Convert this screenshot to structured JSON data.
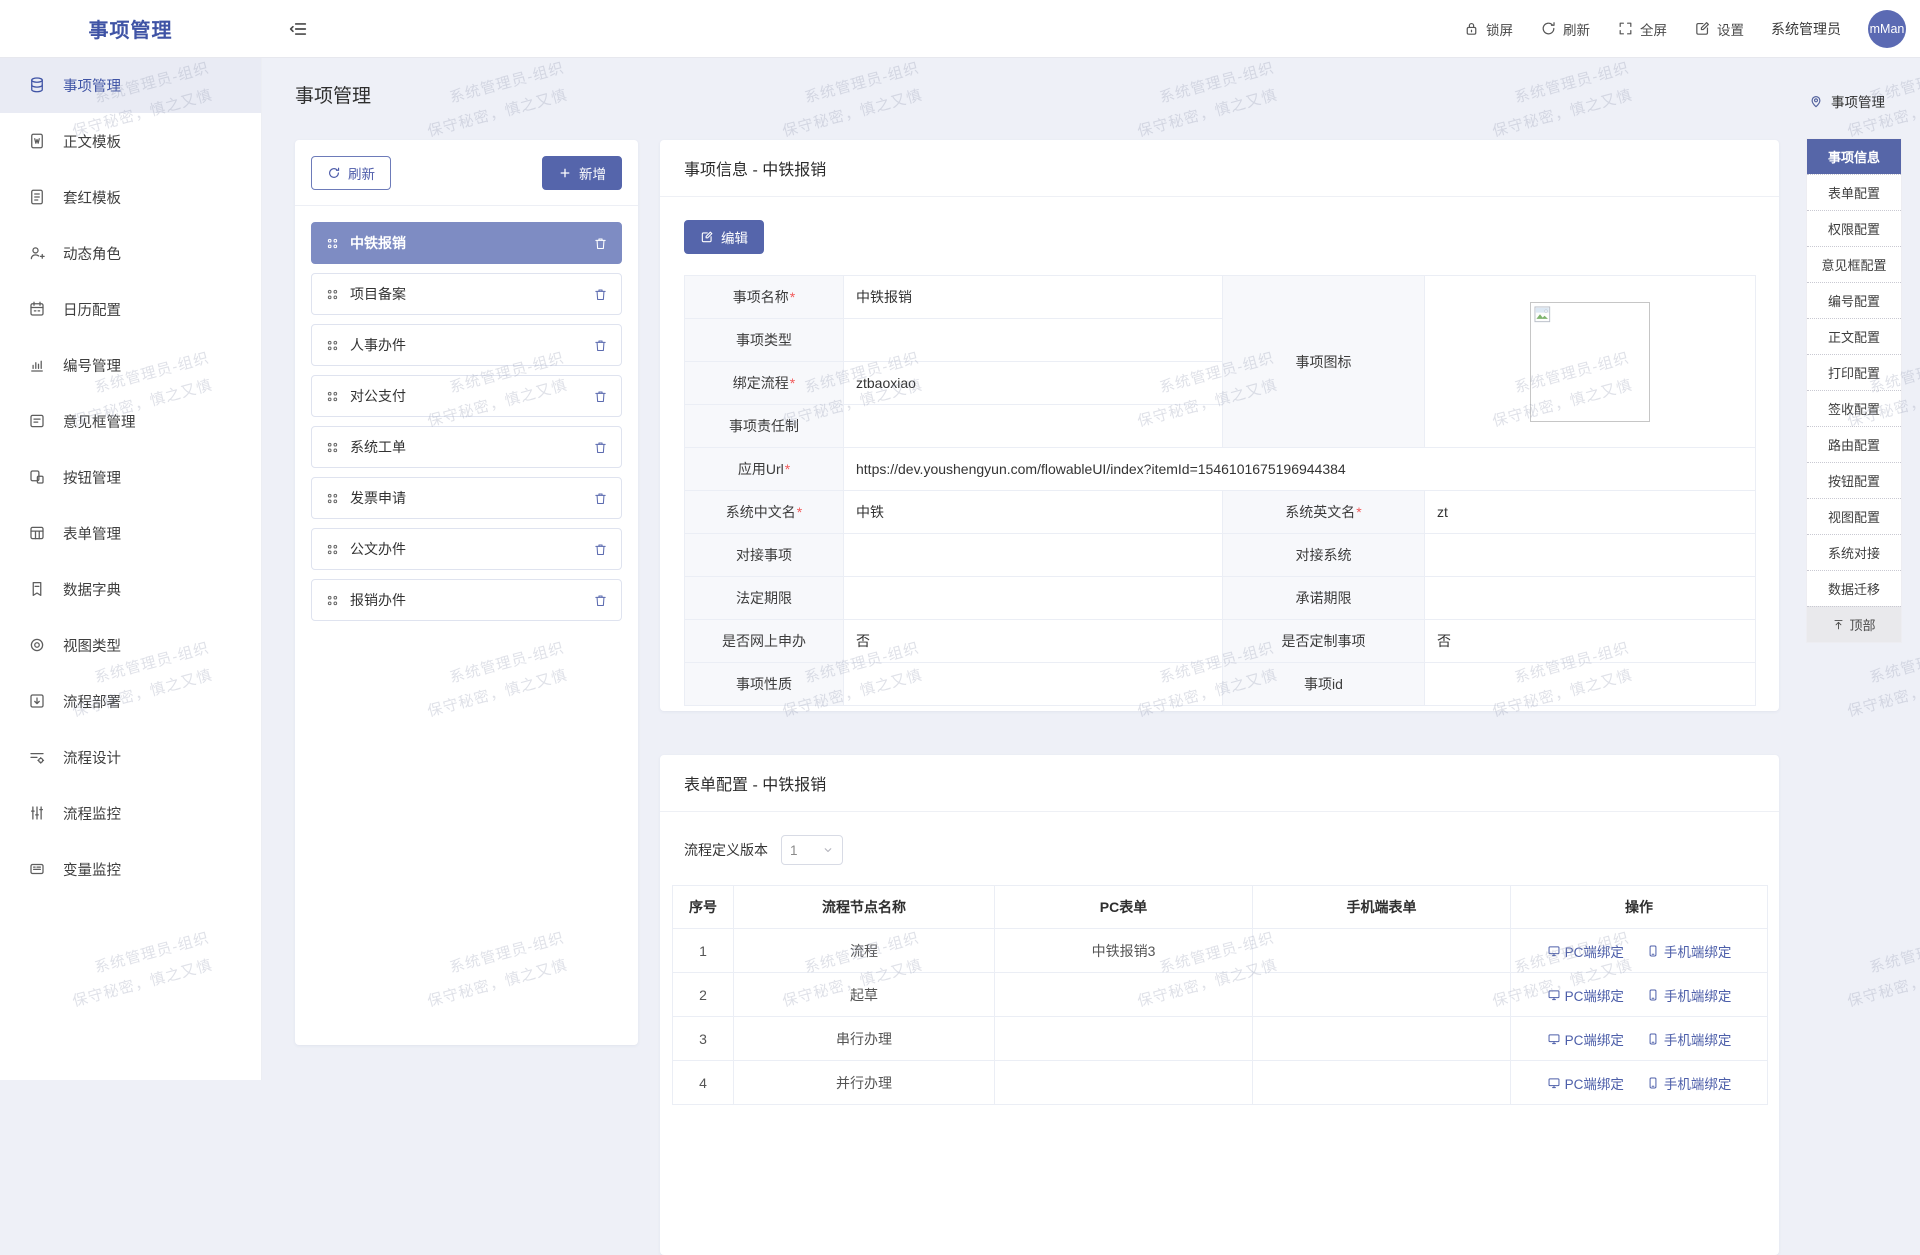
{
  "colors": {
    "accent": "#5565ab",
    "accent_selected": "#7e8cc3",
    "anchor_active": "#5666a8",
    "link": "#4c5ea9",
    "page_bg": "#eef0f7"
  },
  "brand": {
    "title": "事项管理"
  },
  "header": {
    "actions": [
      {
        "icon": "lock-icon",
        "label": "锁屏"
      },
      {
        "icon": "refresh-icon",
        "label": "刷新"
      },
      {
        "icon": "fullscreen-icon",
        "label": "全屏"
      },
      {
        "icon": "edit-square-icon",
        "label": "设置"
      }
    ],
    "username": "系统管理员",
    "avatar_text": "mMan"
  },
  "sidebar": {
    "items": [
      {
        "icon": "database-icon",
        "label": "事项管理",
        "active": true
      },
      {
        "icon": "doc-text-icon",
        "label": "正文模板",
        "active": false
      },
      {
        "icon": "doc-red-icon",
        "label": "套红模板",
        "active": false
      },
      {
        "icon": "user-plus-icon",
        "label": "动态角色",
        "active": false
      },
      {
        "icon": "calendar-icon",
        "label": "日历配置",
        "active": false
      },
      {
        "icon": "bar-chart-icon",
        "label": "编号管理",
        "active": false
      },
      {
        "icon": "comment-box-icon",
        "label": "意见框管理",
        "active": false
      },
      {
        "icon": "button-icon",
        "label": "按钮管理",
        "active": false
      },
      {
        "icon": "form-table-icon",
        "label": "表单管理",
        "active": false
      },
      {
        "icon": "dictionary-icon",
        "label": "数据字典",
        "active": false
      },
      {
        "icon": "view-type-icon",
        "label": "视图类型",
        "active": false
      },
      {
        "icon": "deploy-icon",
        "label": "流程部署",
        "active": false
      },
      {
        "icon": "process-design-icon",
        "label": "流程设计",
        "active": false
      },
      {
        "icon": "process-monitor-icon",
        "label": "流程监控",
        "active": false
      },
      {
        "icon": "variable-monitor-icon",
        "label": "变量监控",
        "active": false
      }
    ]
  },
  "page": {
    "title": "事项管理"
  },
  "list_panel": {
    "refresh_label": "刷新",
    "add_label": "新增",
    "items": [
      {
        "label": "中铁报销",
        "active": true
      },
      {
        "label": "项目备案",
        "active": false
      },
      {
        "label": "人事办件",
        "active": false
      },
      {
        "label": "对公支付",
        "active": false
      },
      {
        "label": "系统工单",
        "active": false
      },
      {
        "label": "发票申请",
        "active": false
      },
      {
        "label": "公文办件",
        "active": false
      },
      {
        "label": "报销办件",
        "active": false
      }
    ]
  },
  "info_card": {
    "title": "事项信息 - 中铁报销",
    "edit_label": "编辑",
    "rows": [
      [
        {
          "t": "label",
          "text": "事项名称",
          "req": true
        },
        {
          "t": "value",
          "text": "中铁报销"
        },
        {
          "t": "label",
          "text": "事项图标",
          "rowspan": 4
        },
        {
          "t": "image",
          "rowspan": 4
        }
      ],
      [
        {
          "t": "label",
          "text": "事项类型"
        },
        {
          "t": "value",
          "text": ""
        }
      ],
      [
        {
          "t": "label",
          "text": "绑定流程",
          "req": true
        },
        {
          "t": "value",
          "text": "ztbaoxiao"
        }
      ],
      [
        {
          "t": "label",
          "text": "事项责任制"
        },
        {
          "t": "value",
          "text": ""
        }
      ],
      [
        {
          "t": "label",
          "text": "应用Url",
          "req": true
        },
        {
          "t": "value",
          "text": "https://dev.youshengyun.com/flowableUI/index?itemId=1546101675196944384",
          "colspan": 3
        }
      ],
      [
        {
          "t": "label",
          "text": "系统中文名",
          "req": true
        },
        {
          "t": "value",
          "text": "中铁"
        },
        {
          "t": "label",
          "text": "系统英文名",
          "req": true
        },
        {
          "t": "value",
          "text": "zt"
        }
      ],
      [
        {
          "t": "label",
          "text": "对接事项"
        },
        {
          "t": "value",
          "text": ""
        },
        {
          "t": "label",
          "text": "对接系统"
        },
        {
          "t": "value",
          "text": ""
        }
      ],
      [
        {
          "t": "label",
          "text": "法定期限"
        },
        {
          "t": "value",
          "text": ""
        },
        {
          "t": "label",
          "text": "承诺期限"
        },
        {
          "t": "value",
          "text": ""
        }
      ],
      [
        {
          "t": "label",
          "text": "是否网上申办"
        },
        {
          "t": "value",
          "text": "否"
        },
        {
          "t": "label",
          "text": "是否定制事项"
        },
        {
          "t": "value",
          "text": "否"
        }
      ],
      [
        {
          "t": "label",
          "text": "事项性质"
        },
        {
          "t": "value",
          "text": ""
        },
        {
          "t": "label",
          "text": "事项id"
        },
        {
          "t": "value",
          "text": ""
        }
      ]
    ]
  },
  "form_card": {
    "title": "表单配置 - 中铁报销",
    "version_label": "流程定义版本",
    "version_value": "1",
    "table": {
      "headers": [
        "序号",
        "流程节点名称",
        "PC表单",
        "手机端表单",
        "操作"
      ],
      "pc_bind_label": "PC端绑定",
      "mobile_bind_label": "手机端绑定",
      "rows": [
        {
          "no": "1",
          "node": "流程",
          "pc_form": "中铁报销3",
          "mobile_form": ""
        },
        {
          "no": "2",
          "node": "起草",
          "pc_form": "",
          "mobile_form": ""
        },
        {
          "no": "3",
          "node": "串行办理",
          "pc_form": "",
          "mobile_form": ""
        },
        {
          "no": "4",
          "node": "并行办理",
          "pc_form": "",
          "mobile_form": ""
        }
      ]
    }
  },
  "anchor": {
    "header": "事项管理",
    "items": [
      {
        "label": "事项信息",
        "active": true
      },
      {
        "label": "表单配置"
      },
      {
        "label": "权限配置"
      },
      {
        "label": "意见框配置"
      },
      {
        "label": "编号配置"
      },
      {
        "label": "正文配置"
      },
      {
        "label": "打印配置"
      },
      {
        "label": "签收配置"
      },
      {
        "label": "路由配置"
      },
      {
        "label": "按钮配置"
      },
      {
        "label": "视图配置"
      },
      {
        "label": "系统对接"
      },
      {
        "label": "数据迁移"
      },
      {
        "label": "顶部",
        "top": true
      }
    ]
  },
  "watermark": {
    "line1": "系统管理员-组织",
    "line2": "保守秘密，慎之又慎"
  }
}
